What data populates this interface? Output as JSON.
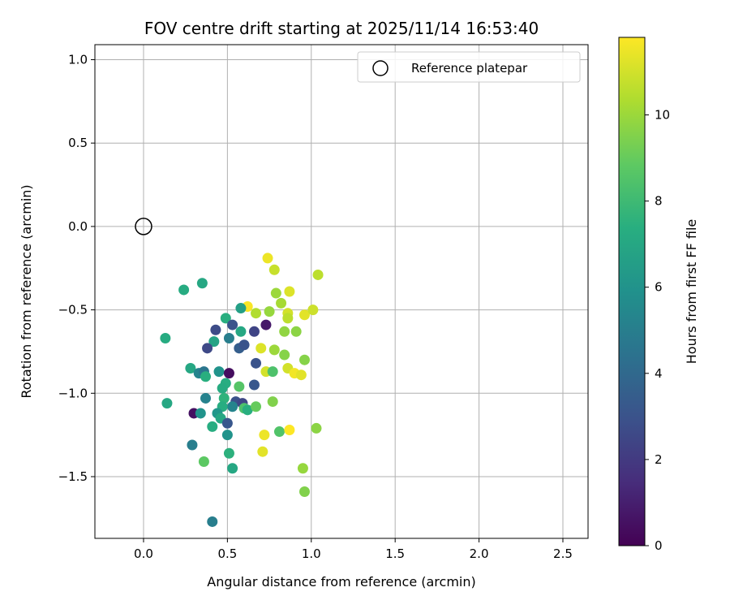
{
  "chart_data": {
    "type": "scatter",
    "title": "FOV centre drift starting at 2025/11/14 16:53:40",
    "xlabel": "Angular distance from reference (arcmin)",
    "ylabel": "Rotation from reference (arcmin)",
    "xlim": [
      -0.29,
      2.65
    ],
    "ylim": [
      -1.87,
      1.09
    ],
    "xticks": [
      0.0,
      0.5,
      1.0,
      1.5,
      2.0,
      2.5
    ],
    "xtick_labels": [
      "0.0",
      "0.5",
      "1.0",
      "1.5",
      "2.0",
      "2.5"
    ],
    "yticks": [
      1.0,
      0.5,
      0.0,
      -0.5,
      -1.0,
      -1.5
    ],
    "ytick_labels": [
      "1.0",
      "0.5",
      "0.0",
      "−0.5",
      "−1.0",
      "−1.5"
    ],
    "grid": true,
    "legend": {
      "position": "top-right",
      "entries": [
        "Reference platepar"
      ]
    },
    "reference_point": {
      "x": 0.0,
      "y": 0.0,
      "marker": "open-circle"
    },
    "colorbar": {
      "label": "Hours from first FF file",
      "range": [
        0,
        11.8
      ],
      "ticks": [
        0,
        2,
        4,
        6,
        8,
        10
      ],
      "tick_labels": [
        "0",
        "2",
        "4",
        "6",
        "8",
        "10"
      ],
      "colormap": "viridis"
    },
    "points": [
      {
        "x": 0.74,
        "y": -0.19,
        "c": 11.5
      },
      {
        "x": 1.04,
        "y": -0.29,
        "c": 10.6
      },
      {
        "x": 0.78,
        "y": -0.26,
        "c": 10.8
      },
      {
        "x": 0.87,
        "y": -0.39,
        "c": 11.2
      },
      {
        "x": 0.79,
        "y": -0.4,
        "c": 10.0
      },
      {
        "x": 0.82,
        "y": -0.46,
        "c": 10.2
      },
      {
        "x": 0.62,
        "y": -0.48,
        "c": 11.7
      },
      {
        "x": 0.67,
        "y": -0.52,
        "c": 10.4
      },
      {
        "x": 0.75,
        "y": -0.51,
        "c": 9.9
      },
      {
        "x": 0.86,
        "y": -0.52,
        "c": 11.0
      },
      {
        "x": 0.86,
        "y": -0.55,
        "c": 10.6
      },
      {
        "x": 0.96,
        "y": -0.53,
        "c": 11.3
      },
      {
        "x": 1.01,
        "y": -0.5,
        "c": 10.9
      },
      {
        "x": 0.58,
        "y": -0.49,
        "c": 6.6
      },
      {
        "x": 0.35,
        "y": -0.34,
        "c": 7.0
      },
      {
        "x": 0.24,
        "y": -0.38,
        "c": 7.2
      },
      {
        "x": 0.49,
        "y": -0.55,
        "c": 7.4
      },
      {
        "x": 0.53,
        "y": -0.59,
        "c": 3.0
      },
      {
        "x": 0.43,
        "y": -0.62,
        "c": 2.7
      },
      {
        "x": 0.58,
        "y": -0.63,
        "c": 7.0
      },
      {
        "x": 0.66,
        "y": -0.63,
        "c": 2.4
      },
      {
        "x": 0.73,
        "y": -0.59,
        "c": 0.8
      },
      {
        "x": 0.51,
        "y": -0.67,
        "c": 5.0
      },
      {
        "x": 0.42,
        "y": -0.69,
        "c": 6.8
      },
      {
        "x": 0.38,
        "y": -0.73,
        "c": 2.6
      },
      {
        "x": 0.57,
        "y": -0.73,
        "c": 3.5
      },
      {
        "x": 0.6,
        "y": -0.71,
        "c": 3.0
      },
      {
        "x": 0.13,
        "y": -0.67,
        "c": 7.2
      },
      {
        "x": 0.84,
        "y": -0.63,
        "c": 9.8
      },
      {
        "x": 0.91,
        "y": -0.63,
        "c": 9.7
      },
      {
        "x": 0.7,
        "y": -0.73,
        "c": 11.2
      },
      {
        "x": 0.78,
        "y": -0.74,
        "c": 10.0
      },
      {
        "x": 0.84,
        "y": -0.77,
        "c": 9.6
      },
      {
        "x": 0.96,
        "y": -0.8,
        "c": 9.6
      },
      {
        "x": 0.67,
        "y": -0.82,
        "c": 3.0
      },
      {
        "x": 0.28,
        "y": -0.85,
        "c": 7.0
      },
      {
        "x": 0.33,
        "y": -0.88,
        "c": 5.3
      },
      {
        "x": 0.36,
        "y": -0.87,
        "c": 4.6
      },
      {
        "x": 0.37,
        "y": -0.9,
        "c": 7.4
      },
      {
        "x": 0.45,
        "y": -0.87,
        "c": 6.0
      },
      {
        "x": 0.51,
        "y": -0.88,
        "c": 0.4
      },
      {
        "x": 0.73,
        "y": -0.87,
        "c": 11.0
      },
      {
        "x": 0.77,
        "y": -0.87,
        "c": 8.4
      },
      {
        "x": 0.86,
        "y": -0.85,
        "c": 11.0
      },
      {
        "x": 0.9,
        "y": -0.88,
        "c": 11.6
      },
      {
        "x": 0.94,
        "y": -0.89,
        "c": 11.3
      },
      {
        "x": 0.49,
        "y": -0.94,
        "c": 7.3
      },
      {
        "x": 0.47,
        "y": -0.97,
        "c": 7.2
      },
      {
        "x": 0.57,
        "y": -0.96,
        "c": 8.6
      },
      {
        "x": 0.66,
        "y": -0.95,
        "c": 3.2
      },
      {
        "x": 0.37,
        "y": -1.03,
        "c": 5.2
      },
      {
        "x": 0.48,
        "y": -1.03,
        "c": 7.6
      },
      {
        "x": 0.55,
        "y": -1.05,
        "c": 2.9
      },
      {
        "x": 0.59,
        "y": -1.06,
        "c": 2.5
      },
      {
        "x": 0.53,
        "y": -1.08,
        "c": 5.3
      },
      {
        "x": 0.47,
        "y": -1.08,
        "c": 7.3
      },
      {
        "x": 0.6,
        "y": -1.09,
        "c": 8.4
      },
      {
        "x": 0.62,
        "y": -1.1,
        "c": 7.4
      },
      {
        "x": 0.67,
        "y": -1.08,
        "c": 9.0
      },
      {
        "x": 0.77,
        "y": -1.05,
        "c": 9.5
      },
      {
        "x": 0.14,
        "y": -1.06,
        "c": 7.0
      },
      {
        "x": 0.44,
        "y": -1.12,
        "c": 6.2
      },
      {
        "x": 0.46,
        "y": -1.15,
        "c": 7.0
      },
      {
        "x": 0.3,
        "y": -1.12,
        "c": 0.5
      },
      {
        "x": 0.34,
        "y": -1.12,
        "c": 6.0
      },
      {
        "x": 0.5,
        "y": -1.18,
        "c": 3.2
      },
      {
        "x": 0.41,
        "y": -1.2,
        "c": 7.3
      },
      {
        "x": 0.5,
        "y": -1.25,
        "c": 6.0
      },
      {
        "x": 0.72,
        "y": -1.25,
        "c": 11.5
      },
      {
        "x": 0.81,
        "y": -1.23,
        "c": 8.5
      },
      {
        "x": 0.87,
        "y": -1.22,
        "c": 11.8
      },
      {
        "x": 1.03,
        "y": -1.21,
        "c": 9.7
      },
      {
        "x": 0.29,
        "y": -1.31,
        "c": 5.0
      },
      {
        "x": 0.51,
        "y": -1.36,
        "c": 7.5
      },
      {
        "x": 0.71,
        "y": -1.35,
        "c": 11.3
      },
      {
        "x": 0.36,
        "y": -1.41,
        "c": 8.8
      },
      {
        "x": 0.53,
        "y": -1.45,
        "c": 7.0
      },
      {
        "x": 0.95,
        "y": -1.45,
        "c": 9.9
      },
      {
        "x": 0.96,
        "y": -1.59,
        "c": 9.5
      },
      {
        "x": 0.41,
        "y": -1.77,
        "c": 5.0
      }
    ]
  }
}
